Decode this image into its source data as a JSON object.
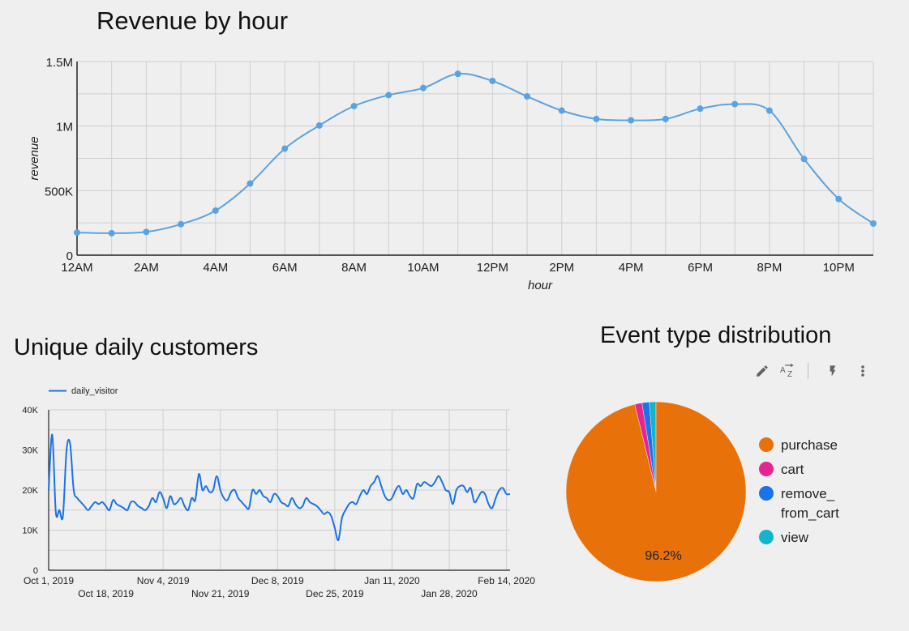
{
  "charts": {
    "revenue": {
      "title": "Revenue by hour",
      "xlabel": "hour",
      "ylabel": "revenue",
      "line_color": "#5ba3e0"
    },
    "daily": {
      "title": "Unique daily customers",
      "legend_label": "daily_visitor",
      "line_color": "#1a73e8"
    },
    "events": {
      "title": "Event type distribution",
      "slice_label": "96.2%",
      "legend": [
        {
          "label": "purchase",
          "color": "#e8710a"
        },
        {
          "label": "cart",
          "color": "#e52592"
        },
        {
          "label": "remove_ from_cart",
          "color": "#1a73e8"
        },
        {
          "label": "view",
          "color": "#12b5cb"
        }
      ]
    }
  },
  "toolbar": {
    "icons": [
      "pencil-icon",
      "sort-az-icon",
      "lightning-icon",
      "more-vert-icon"
    ]
  },
  "chart_data": [
    {
      "type": "line",
      "title": "Revenue by hour",
      "xlabel": "hour",
      "ylabel": "revenue",
      "x_tick_labels": [
        "12AM",
        "2AM",
        "4AM",
        "6AM",
        "8AM",
        "10AM",
        "12PM",
        "2PM",
        "4PM",
        "6PM",
        "8PM",
        "10PM"
      ],
      "y_tick_labels": [
        "0",
        "500K",
        "1M",
        "1.5M"
      ],
      "y_ticks": [
        0,
        500000,
        1000000,
        1500000
      ],
      "ylim": [
        0,
        1500000
      ],
      "grid": true,
      "x": [
        0,
        1,
        2,
        3,
        4,
        5,
        6,
        7,
        8,
        9,
        10,
        11,
        12,
        13,
        14,
        15,
        16,
        17,
        18,
        19,
        20,
        21,
        22,
        23
      ],
      "values": [
        175000,
        170000,
        180000,
        240000,
        345000,
        555000,
        825000,
        1005000,
        1155000,
        1240000,
        1295000,
        1405000,
        1350000,
        1230000,
        1120000,
        1055000,
        1045000,
        1055000,
        1135000,
        1170000,
        1120000,
        745000,
        435000,
        245000
      ]
    },
    {
      "type": "line",
      "title": "Unique daily customers",
      "series": [
        {
          "name": "daily_visitor"
        }
      ],
      "legend_position": "top-left",
      "x_tick_labels": [
        "Oct 1, 2019",
        "Oct 18, 2019",
        "Nov 4, 2019",
        "Nov 21, 2019",
        "Dec 8, 2019",
        "Dec 25, 2019",
        "Jan 11, 2020",
        "Jan 28, 2020",
        "Feb 14, 2020"
      ],
      "y_tick_labels": [
        "0",
        "10K",
        "20K",
        "30K",
        "40K"
      ],
      "y_ticks": [
        0,
        10000,
        20000,
        30000,
        40000
      ],
      "ylim": [
        0,
        40000
      ],
      "grid": true,
      "x_start": "2019-10-01",
      "x_end": "2020-02-29",
      "values": [
        20000,
        33800,
        14500,
        15000,
        13500,
        30000,
        31500,
        20000,
        18000,
        17000,
        16000,
        15000,
        16000,
        17000,
        16500,
        17000,
        16000,
        15000,
        17500,
        16500,
        16000,
        15500,
        15000,
        17000,
        17000,
        16000,
        15500,
        15000,
        16000,
        18000,
        17000,
        19500,
        18000,
        15500,
        18500,
        16500,
        17000,
        18000,
        16000,
        15000,
        18000,
        17500,
        24000,
        20000,
        21000,
        19500,
        20000,
        23500,
        20000,
        18000,
        17500,
        19500,
        20000,
        18000,
        17000,
        16000,
        15500,
        20000,
        19000,
        20000,
        18500,
        18000,
        17000,
        19000,
        18500,
        17000,
        16500,
        16000,
        18000,
        16500,
        15500,
        16000,
        18000,
        17000,
        16500,
        16000,
        15000,
        14000,
        14500,
        13500,
        10500,
        7500,
        13000,
        15000,
        16500,
        17000,
        16500,
        18500,
        20000,
        19000,
        21000,
        22000,
        23500,
        21000,
        18500,
        17500,
        18000,
        20000,
        21000,
        19000,
        20000,
        18500,
        18000,
        21500,
        21000,
        22000,
        21500,
        21000,
        22000,
        23500,
        22000,
        20000,
        19500,
        16500,
        20000,
        21000,
        21000,
        19500,
        20500,
        17000,
        18000,
        19500,
        19000,
        16500,
        15500,
        18000,
        20000,
        20500,
        19000,
        19000
      ]
    },
    {
      "type": "pie",
      "title": "Event type distribution",
      "categories": [
        "purchase",
        "cart",
        "remove_ from_cart",
        "view"
      ],
      "values": [
        96.2,
        1.3,
        1.3,
        1.2
      ],
      "data_labels": [
        "96.2%"
      ],
      "legend_position": "right"
    }
  ]
}
